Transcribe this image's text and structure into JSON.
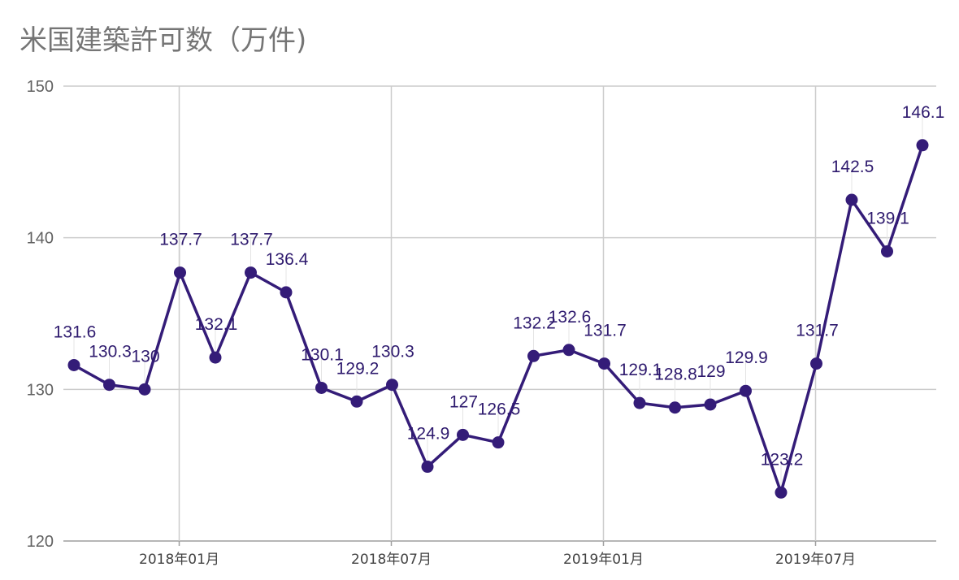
{
  "chart_data": {
    "type": "line",
    "title": "米国建築許可数（万件)",
    "ylim": [
      120,
      150
    ],
    "yticks": [
      "120",
      "130",
      "140",
      "150"
    ],
    "xticks": [
      {
        "label": "2018年01月",
        "index": 3
      },
      {
        "label": "2018年07月",
        "index": 9
      },
      {
        "label": "2019年01月",
        "index": 15
      },
      {
        "label": "2019年07月",
        "index": 21
      }
    ],
    "grid": true,
    "color": "#341c78",
    "values": [
      131.6,
      130.3,
      130,
      137.7,
      132.1,
      137.7,
      136.4,
      130.1,
      129.2,
      130.3,
      124.9,
      127,
      126.5,
      132.2,
      132.6,
      131.7,
      129.1,
      128.8,
      129,
      129.9,
      123.2,
      131.7,
      142.5,
      139.1,
      146.1
    ],
    "labels": [
      "131.6",
      "130.3",
      "130",
      "137.7",
      "132.1",
      "137.7",
      "136.4",
      "130.1",
      "129.2",
      "130.3",
      "124.9",
      "127",
      "126.5",
      "132.2",
      "132.6",
      "131.7",
      "129.1",
      "128.8",
      "129",
      "129.9",
      "123.2",
      "131.7",
      "142.5",
      "139.1",
      "146.1"
    ]
  }
}
